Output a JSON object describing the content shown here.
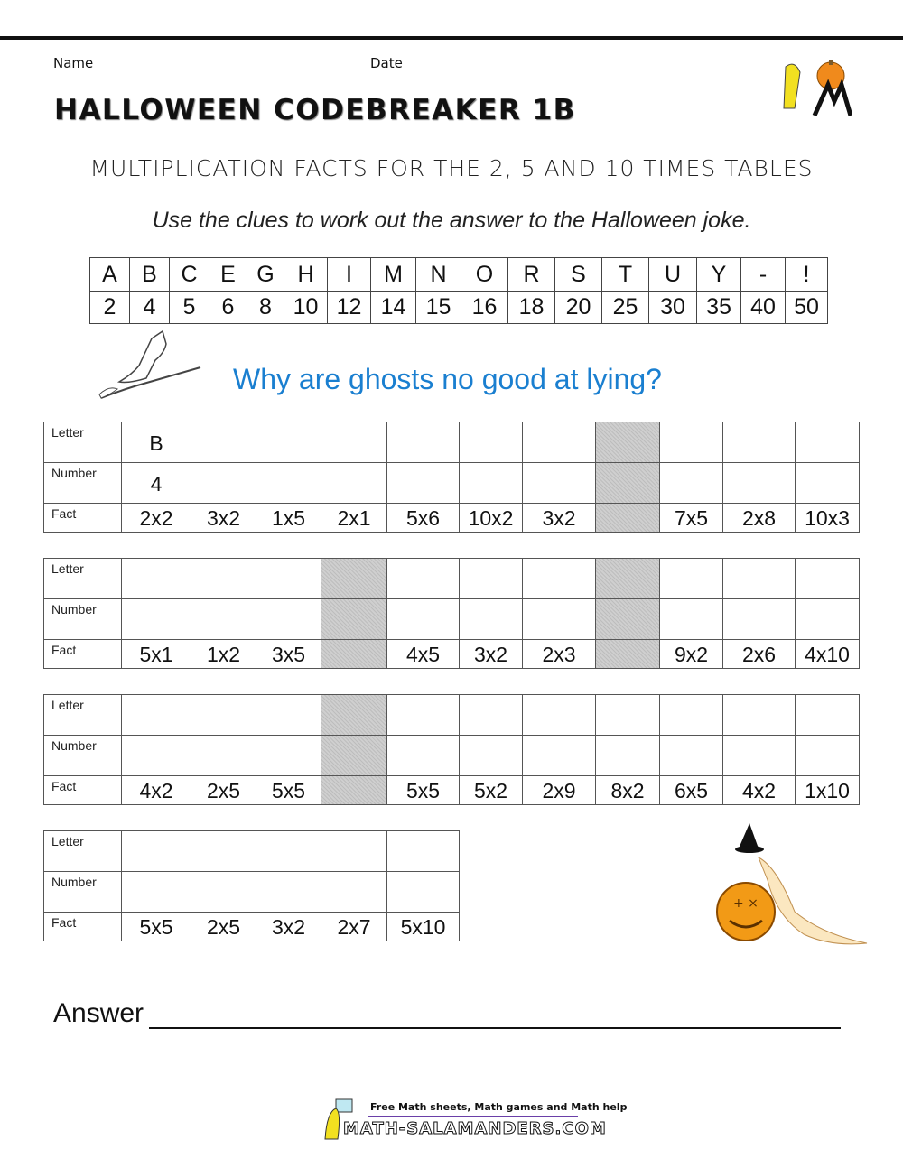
{
  "header": {
    "name_label": "Name",
    "date_label": "Date",
    "title": "HALLOWEEN CODEBREAKER 1B",
    "subtitle": "MULTIPLICATION FACTS FOR THE 2, 5 AND 10 TIMES TABLES",
    "instructions": "Use the clues to work out the answer to the Halloween joke."
  },
  "code": {
    "letters": [
      "A",
      "B",
      "C",
      "E",
      "G",
      "H",
      "I",
      "M",
      "N",
      "O",
      "R",
      "S",
      "T",
      "U",
      "Y",
      "-",
      "!"
    ],
    "numbers": [
      "2",
      "4",
      "5",
      "6",
      "8",
      "10",
      "12",
      "14",
      "15",
      "16",
      "18",
      "20",
      "25",
      "30",
      "35",
      "40",
      "50"
    ]
  },
  "question": "Why are ghosts no good at lying?",
  "row_labels": {
    "letter": "Letter",
    "number": "Number",
    "fact": "Fact"
  },
  "blocks": [
    {
      "letters": [
        "B",
        "",
        "",
        "",
        "",
        "",
        "",
        "",
        "",
        "",
        ""
      ],
      "numbers": [
        "4",
        "",
        "",
        "",
        "",
        "",
        "",
        "",
        "",
        "",
        ""
      ],
      "facts": [
        "2x2",
        "3x2",
        "1x5",
        "2x1",
        "5x6",
        "10x2",
        "3x2",
        null,
        "7x5",
        "2x8",
        "10x3"
      ]
    },
    {
      "letters": [
        "",
        "",
        "",
        "",
        "",
        "",
        "",
        "",
        "",
        "",
        ""
      ],
      "numbers": [
        "",
        "",
        "",
        "",
        "",
        "",
        "",
        "",
        "",
        "",
        ""
      ],
      "facts": [
        "5x1",
        "1x2",
        "3x5",
        null,
        "4x5",
        "3x2",
        "2x3",
        null,
        "9x2",
        "2x6",
        "4x10"
      ]
    },
    {
      "letters": [
        "",
        "",
        "",
        "",
        "",
        "",
        "",
        "",
        "",
        "",
        ""
      ],
      "numbers": [
        "",
        "",
        "",
        "",
        "",
        "",
        "",
        "",
        "",
        "",
        ""
      ],
      "facts": [
        "4x2",
        "2x5",
        "5x5",
        null,
        "5x5",
        "5x2",
        "2x9",
        "8x2",
        "6x5",
        "4x2",
        "1x10"
      ]
    },
    {
      "letters": [
        "",
        "",
        "",
        "",
        ""
      ],
      "numbers": [
        "",
        "",
        "",
        "",
        ""
      ],
      "facts": [
        "5x5",
        "2x5",
        "3x2",
        "2x7",
        "5x10"
      ]
    }
  ],
  "answer_label": "Answer",
  "footer": {
    "tagline": "Free Math sheets, Math games and Math help",
    "site": "MATH-SALAMANDERS.COM"
  },
  "colors": {
    "question": "#1a7fd0",
    "blocked_cell": "#c8c8c8"
  }
}
